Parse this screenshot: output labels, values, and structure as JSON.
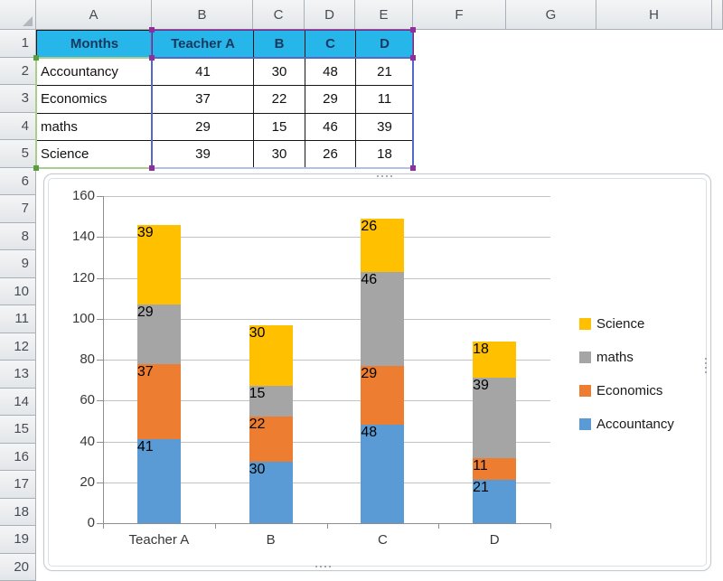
{
  "sheet": {
    "column_headers": [
      "A",
      "B",
      "C",
      "D",
      "E",
      "F",
      "G",
      "H"
    ],
    "row_labels": [
      "1",
      "2",
      "3",
      "4",
      "5",
      "6",
      "7",
      "8",
      "9",
      "10",
      "11",
      "12",
      "13",
      "14",
      "15",
      "16",
      "17",
      "18",
      "19",
      "20"
    ]
  },
  "table": {
    "header_row": [
      "Months",
      "Teacher A",
      "B",
      "C",
      "D"
    ],
    "rows": [
      [
        "Accountancy",
        "41",
        "30",
        "48",
        "21"
      ],
      [
        "Economics",
        "37",
        "22",
        "29",
        "11"
      ],
      [
        "maths",
        "29",
        "15",
        "46",
        "39"
      ],
      [
        "Science",
        "39",
        "30",
        "26",
        "18"
      ]
    ]
  },
  "selection": {
    "series_names_range": "B1:E1",
    "categories_range": "A2:A5",
    "values_range": "B2:E5"
  },
  "chart_data": {
    "type": "bar",
    "stacked": true,
    "title": "",
    "categories": [
      "Teacher A",
      "B",
      "C",
      "D"
    ],
    "series": [
      {
        "name": "Accountancy",
        "color": "#5B9BD5",
        "values": [
          41,
          30,
          48,
          21
        ]
      },
      {
        "name": "Economics",
        "color": "#ED7D31",
        "values": [
          37,
          22,
          29,
          11
        ]
      },
      {
        "name": "maths",
        "color": "#A5A5A5",
        "values": [
          29,
          15,
          46,
          39
        ]
      },
      {
        "name": "Science",
        "color": "#FFC000",
        "values": [
          39,
          30,
          26,
          18
        ]
      }
    ],
    "stack_totals": [
      146,
      97,
      149,
      89
    ],
    "ylim": [
      0,
      160
    ],
    "yticks": [
      0,
      20,
      40,
      60,
      80,
      100,
      120,
      140,
      160
    ],
    "grid": true,
    "legend_position": "right",
    "legend_items_top_to_bottom": [
      "Science",
      "maths",
      "Economics",
      "Accountancy"
    ]
  },
  "colors": {
    "table_header_bg": "#27B6E9",
    "table_header_text": "#17375E",
    "selection_blue": "#5468CA",
    "selection_purple": "#9336A4",
    "selection_green": "#A9CC8F",
    "handle_purple": "#8E2F9E",
    "handle_green": "#5A9E3A",
    "chart_gridline": "#C3C3C3",
    "chart_axis": "#8F8F8F"
  }
}
